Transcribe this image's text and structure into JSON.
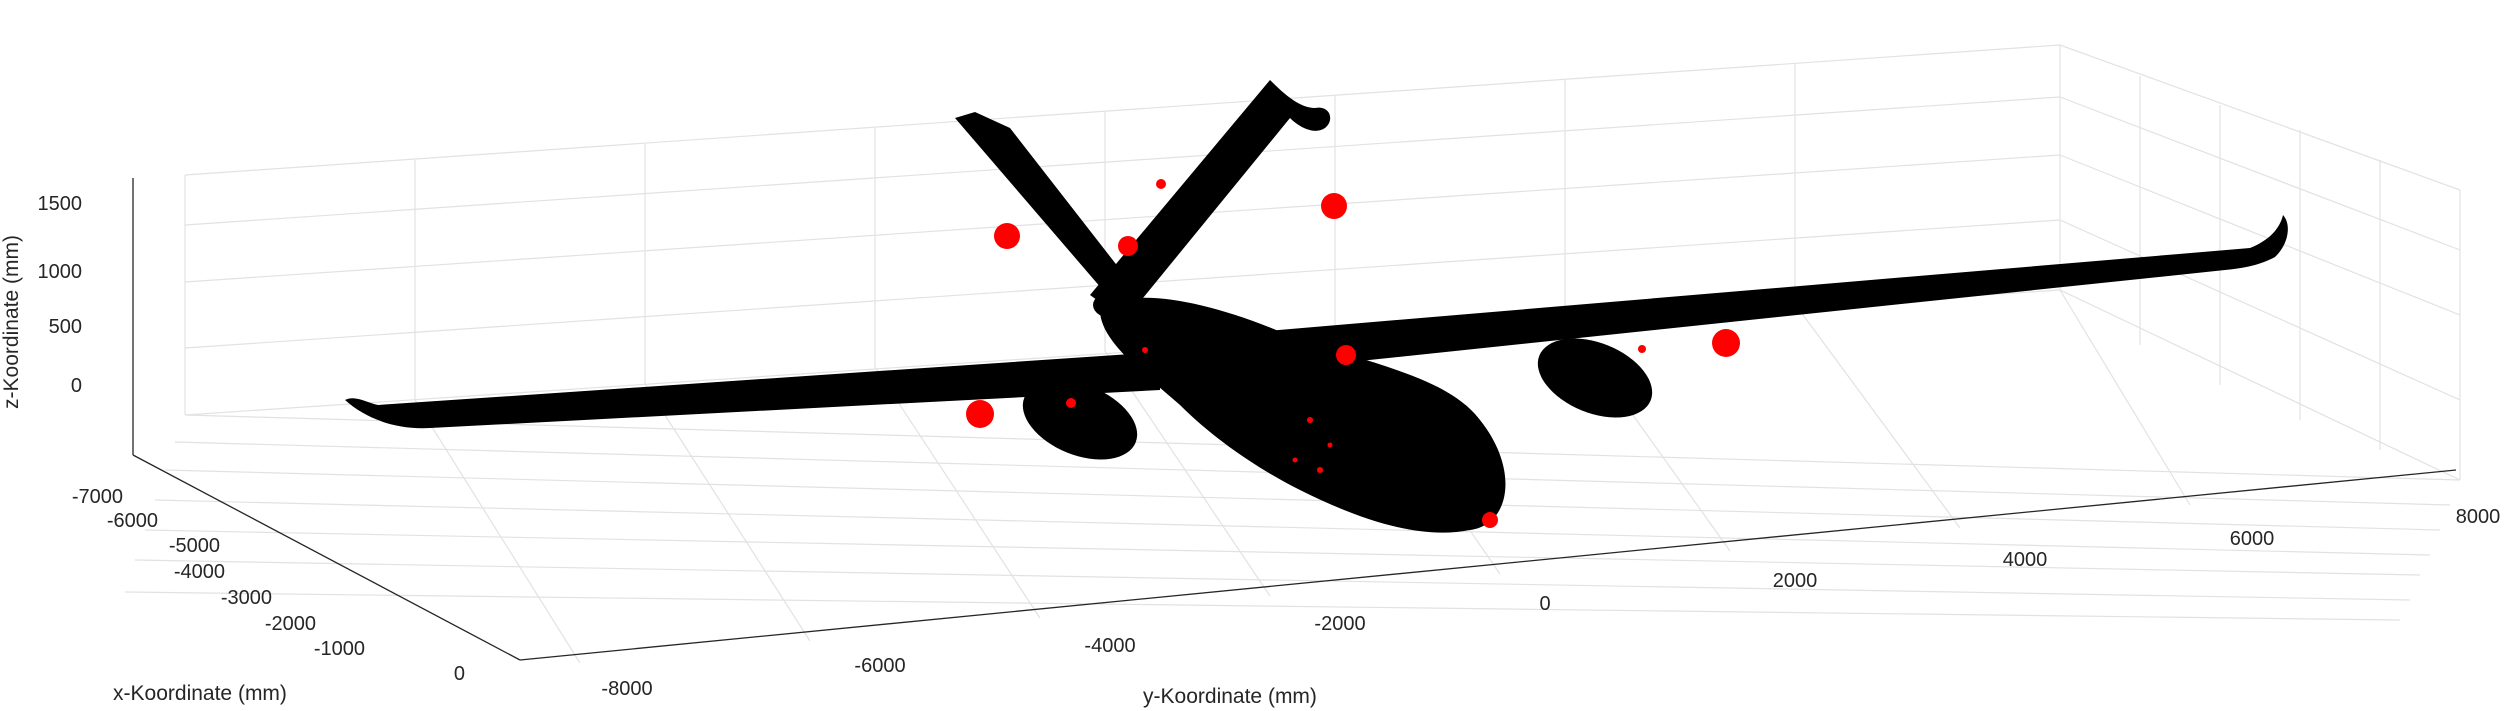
{
  "chart_data": {
    "type": "scatter3d",
    "xlabel": "x-Koordinate (mm)",
    "ylabel": "y-Koordinate (mm)",
    "zlabel": "z-Koordinate (mm)",
    "x_ticks": [
      "-7000",
      "-6000",
      "-5000",
      "-4000",
      "-3000",
      "-2000",
      "-1000",
      "0"
    ],
    "y_ticks": [
      "-8000",
      "-6000",
      "-4000",
      "-2000",
      "0",
      "2000",
      "4000",
      "6000",
      "8000"
    ],
    "z_ticks": [
      "1500",
      "1000",
      "500",
      "0"
    ],
    "grid": true,
    "series": [
      {
        "color": "#000000",
        "marker": "point-cloud"
      },
      {
        "color": "#ff0000",
        "marker": "circle"
      }
    ]
  }
}
